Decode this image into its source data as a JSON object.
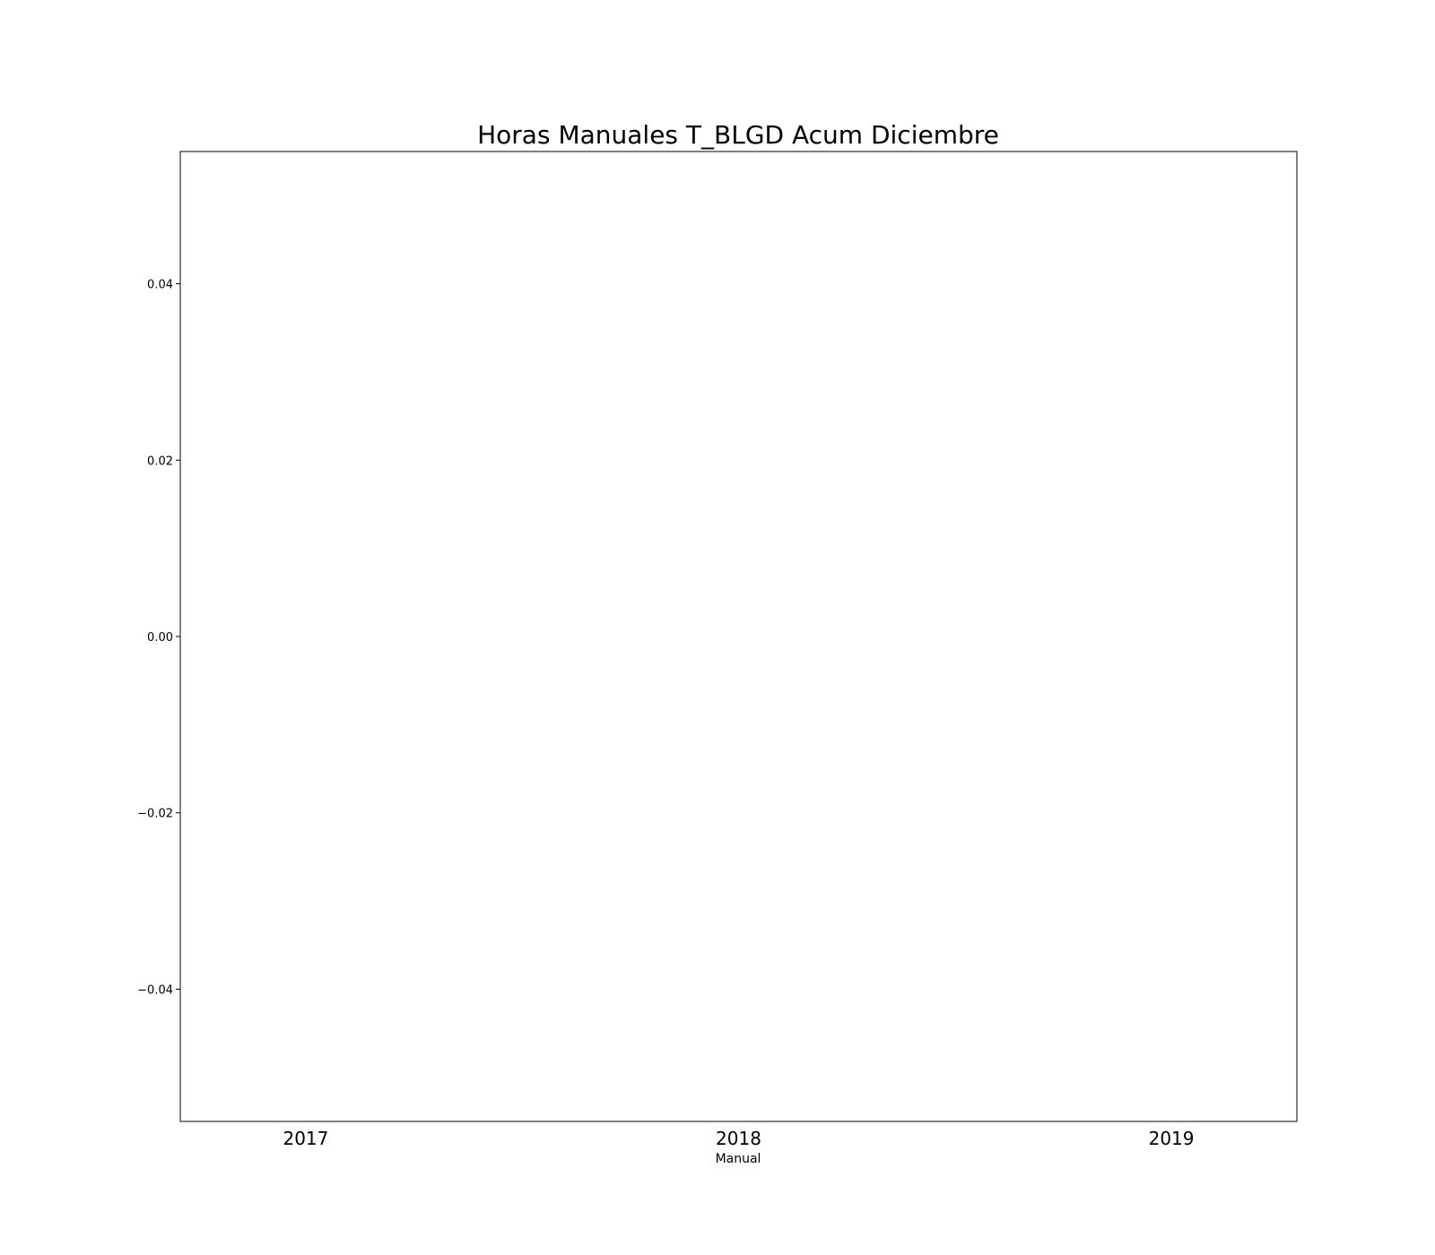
{
  "chart_data": {
    "type": "bar",
    "title": "Horas Manuales T_BLGD Acum Diciembre",
    "xlabel": "Manual",
    "ylabel": "",
    "categories": [
      "2017",
      "2018",
      "2019"
    ],
    "series": [],
    "xlim": [
      2016.71,
      2019.29
    ],
    "ylim": [
      -0.055,
      0.055
    ],
    "yticks": [
      -0.04,
      -0.02,
      0.0,
      0.02,
      0.04
    ],
    "ytick_labels": [
      "−0.04",
      "−0.02",
      "0.00",
      "0.02",
      "0.04"
    ],
    "grid": false,
    "legend": "none"
  }
}
